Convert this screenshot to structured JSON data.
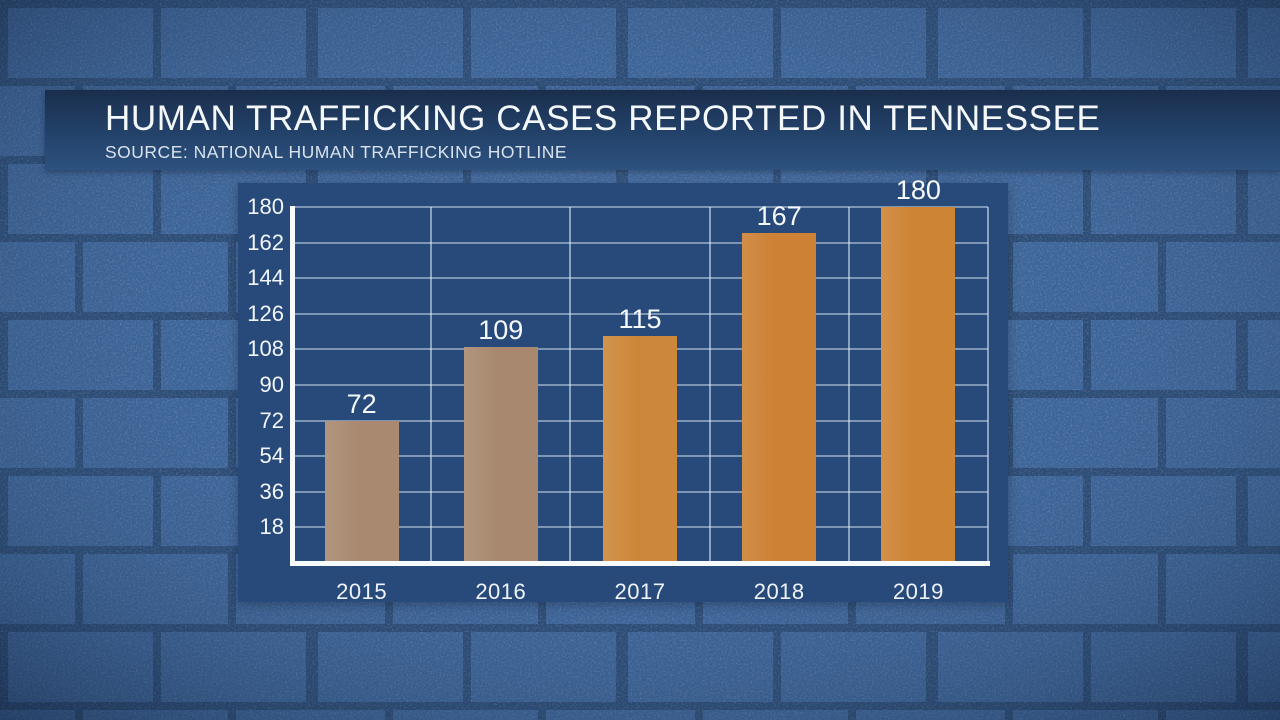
{
  "header": {
    "title": "HUMAN TRAFFICKING CASES REPORTED IN TENNESSEE",
    "source": "SOURCE: NATIONAL HUMAN TRAFFICKING HOTLINE"
  },
  "colors": {
    "banner_top": "#1a2e4c",
    "banner_bottom": "#2d527f",
    "panel_background": "#284a7a",
    "axis": "#f7fafc",
    "gridline": "rgba(212,225,239,0.5)",
    "brick": "#3b6296",
    "mortar": "#28466f",
    "text": "#f4f8fb"
  },
  "chart_data": {
    "type": "bar",
    "title": "HUMAN TRAFFICKING CASES REPORTED IN TENNESSEE",
    "subtitle": "SOURCE: NATIONAL HUMAN TRAFFICKING HOTLINE",
    "categories": [
      "2015",
      "2016",
      "2017",
      "2018",
      "2019"
    ],
    "values": [
      72,
      109,
      115,
      167,
      180
    ],
    "data_labels": [
      "72",
      "109",
      "115",
      "167",
      "180"
    ],
    "bar_colors": [
      "#a98a70",
      "#a8896f",
      "#cd873a",
      "#cc8135",
      "#cd8434"
    ],
    "xlabel": "",
    "ylabel": "",
    "ylim": [
      0,
      180
    ],
    "yticks": [
      18,
      36,
      54,
      72,
      90,
      108,
      126,
      144,
      162,
      180
    ],
    "grid": "on",
    "legend": "none"
  }
}
